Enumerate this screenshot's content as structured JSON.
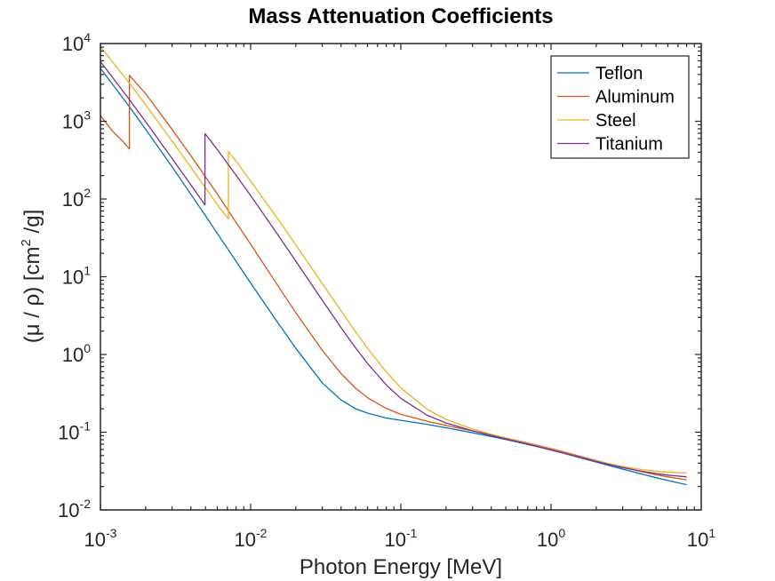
{
  "chart_data": {
    "type": "line",
    "title": "Mass Attenuation Coefficients",
    "xlabel": "Photon Energy [MeV]",
    "ylabel": "(μ / ρ) [cm² /g]",
    "ylabel_parts": {
      "pre": "(μ / ρ) [cm",
      "sup": "2",
      "post": " /g]"
    },
    "xscale": "log",
    "yscale": "log",
    "xlim": [
      0.001,
      10
    ],
    "ylim": [
      0.01,
      10000
    ],
    "grid": false,
    "legend_position": "top-right",
    "x_ticks": [
      {
        "base": "10",
        "exp": "-3",
        "value": 0.001
      },
      {
        "base": "10",
        "exp": "-2",
        "value": 0.01
      },
      {
        "base": "10",
        "exp": "-1",
        "value": 0.1
      },
      {
        "base": "10",
        "exp": "0",
        "value": 1
      },
      {
        "base": "10",
        "exp": "1",
        "value": 10
      }
    ],
    "y_ticks": [
      {
        "base": "10",
        "exp": "-2",
        "value": 0.01
      },
      {
        "base": "10",
        "exp": "-1",
        "value": 0.1
      },
      {
        "base": "10",
        "exp": "0",
        "value": 1
      },
      {
        "base": "10",
        "exp": "1",
        "value": 10
      },
      {
        "base": "10",
        "exp": "2",
        "value": 100
      },
      {
        "base": "10",
        "exp": "3",
        "value": 1000
      },
      {
        "base": "10",
        "exp": "4",
        "value": 10000
      }
    ],
    "series": [
      {
        "name": "Teflon",
        "color": "#0072BD",
        "x": [
          0.001,
          0.0015,
          0.002,
          0.003,
          0.004,
          0.005,
          0.006,
          0.008,
          0.01,
          0.015,
          0.02,
          0.03,
          0.04,
          0.05,
          0.06,
          0.08,
          0.1,
          0.15,
          0.2,
          0.3,
          0.4,
          0.5,
          0.6,
          0.8,
          1,
          1.25,
          1.5,
          2,
          3,
          4,
          5,
          6,
          8
        ],
        "y": [
          4800,
          1700,
          790,
          260,
          115,
          61,
          36,
          15.8,
          8.3,
          2.65,
          1.2,
          0.43,
          0.26,
          0.2,
          0.176,
          0.152,
          0.142,
          0.126,
          0.114,
          0.0985,
          0.0881,
          0.0805,
          0.0745,
          0.0654,
          0.0588,
          0.0527,
          0.0479,
          0.0413,
          0.0335,
          0.029,
          0.026,
          0.0239,
          0.0211
        ]
      },
      {
        "name": "Aluminum",
        "color": "#D95319",
        "x": [
          0.001,
          0.0012,
          0.0014,
          0.00156,
          0.00156,
          0.002,
          0.003,
          0.004,
          0.005,
          0.006,
          0.008,
          0.01,
          0.015,
          0.02,
          0.03,
          0.04,
          0.05,
          0.06,
          0.08,
          0.1,
          0.15,
          0.2,
          0.3,
          0.4,
          0.5,
          0.6,
          0.8,
          1,
          1.25,
          1.5,
          2,
          3,
          4,
          5,
          6,
          8
        ],
        "y": [
          1185,
          750,
          560,
          440,
          3900,
          2260,
          788,
          361,
          193,
          116,
          50,
          26.2,
          7.96,
          3.44,
          1.13,
          0.568,
          0.368,
          0.278,
          0.202,
          0.17,
          0.138,
          0.122,
          0.104,
          0.0928,
          0.0844,
          0.0778,
          0.0683,
          0.0614,
          0.0549,
          0.05,
          0.0432,
          0.0354,
          0.0311,
          0.0284,
          0.0266,
          0.0244
        ]
      },
      {
        "name": "Steel",
        "color": "#EDB120",
        "x": [
          0.001,
          0.0015,
          0.002,
          0.003,
          0.004,
          0.005,
          0.006,
          0.007112,
          0.007112,
          0.008,
          0.01,
          0.015,
          0.02,
          0.03,
          0.04,
          0.05,
          0.06,
          0.08,
          0.1,
          0.15,
          0.2,
          0.3,
          0.4,
          0.5,
          0.6,
          0.8,
          1,
          1.25,
          1.5,
          2,
          3,
          4,
          5,
          6,
          8
        ],
        "y": [
          9085,
          3399,
          1626,
          557.6,
          256.7,
          139.8,
          84.6,
          55.5,
          407.6,
          305.6,
          170.6,
          57.08,
          25.68,
          8.176,
          3.629,
          1.958,
          1.205,
          0.5952,
          0.3717,
          0.1964,
          0.146,
          0.1099,
          0.094,
          0.08414,
          0.07704,
          0.06699,
          0.05995,
          0.0535,
          0.04883,
          0.04265,
          0.03621,
          0.03312,
          0.03146,
          0.03057,
          0.02991
        ]
      },
      {
        "name": "Titanium",
        "color": "#7E2F8E",
        "x": [
          0.001,
          0.0015,
          0.002,
          0.003,
          0.004,
          0.004966,
          0.004966,
          0.005,
          0.006,
          0.008,
          0.01,
          0.015,
          0.02,
          0.03,
          0.04,
          0.05,
          0.06,
          0.08,
          0.1,
          0.15,
          0.2,
          0.3,
          0.4,
          0.5,
          0.6,
          0.8,
          1,
          1.25,
          1.5,
          2,
          3,
          4,
          5,
          6,
          8
        ],
        "y": [
          5869,
          2096,
          986,
          332.3,
          151.7,
          83.8,
          687.8,
          683.8,
          432.3,
          202.3,
          110.7,
          35.87,
          15.85,
          4.972,
          2.214,
          1.213,
          0.7661,
          0.4052,
          0.2721,
          0.1649,
          0.1314,
          0.1043,
          0.09087,
          0.08197,
          0.07555,
          0.06614,
          0.05934,
          0.05305,
          0.04843,
          0.04195,
          0.03507,
          0.03148,
          0.02937,
          0.02804,
          0.02661
        ]
      }
    ]
  }
}
